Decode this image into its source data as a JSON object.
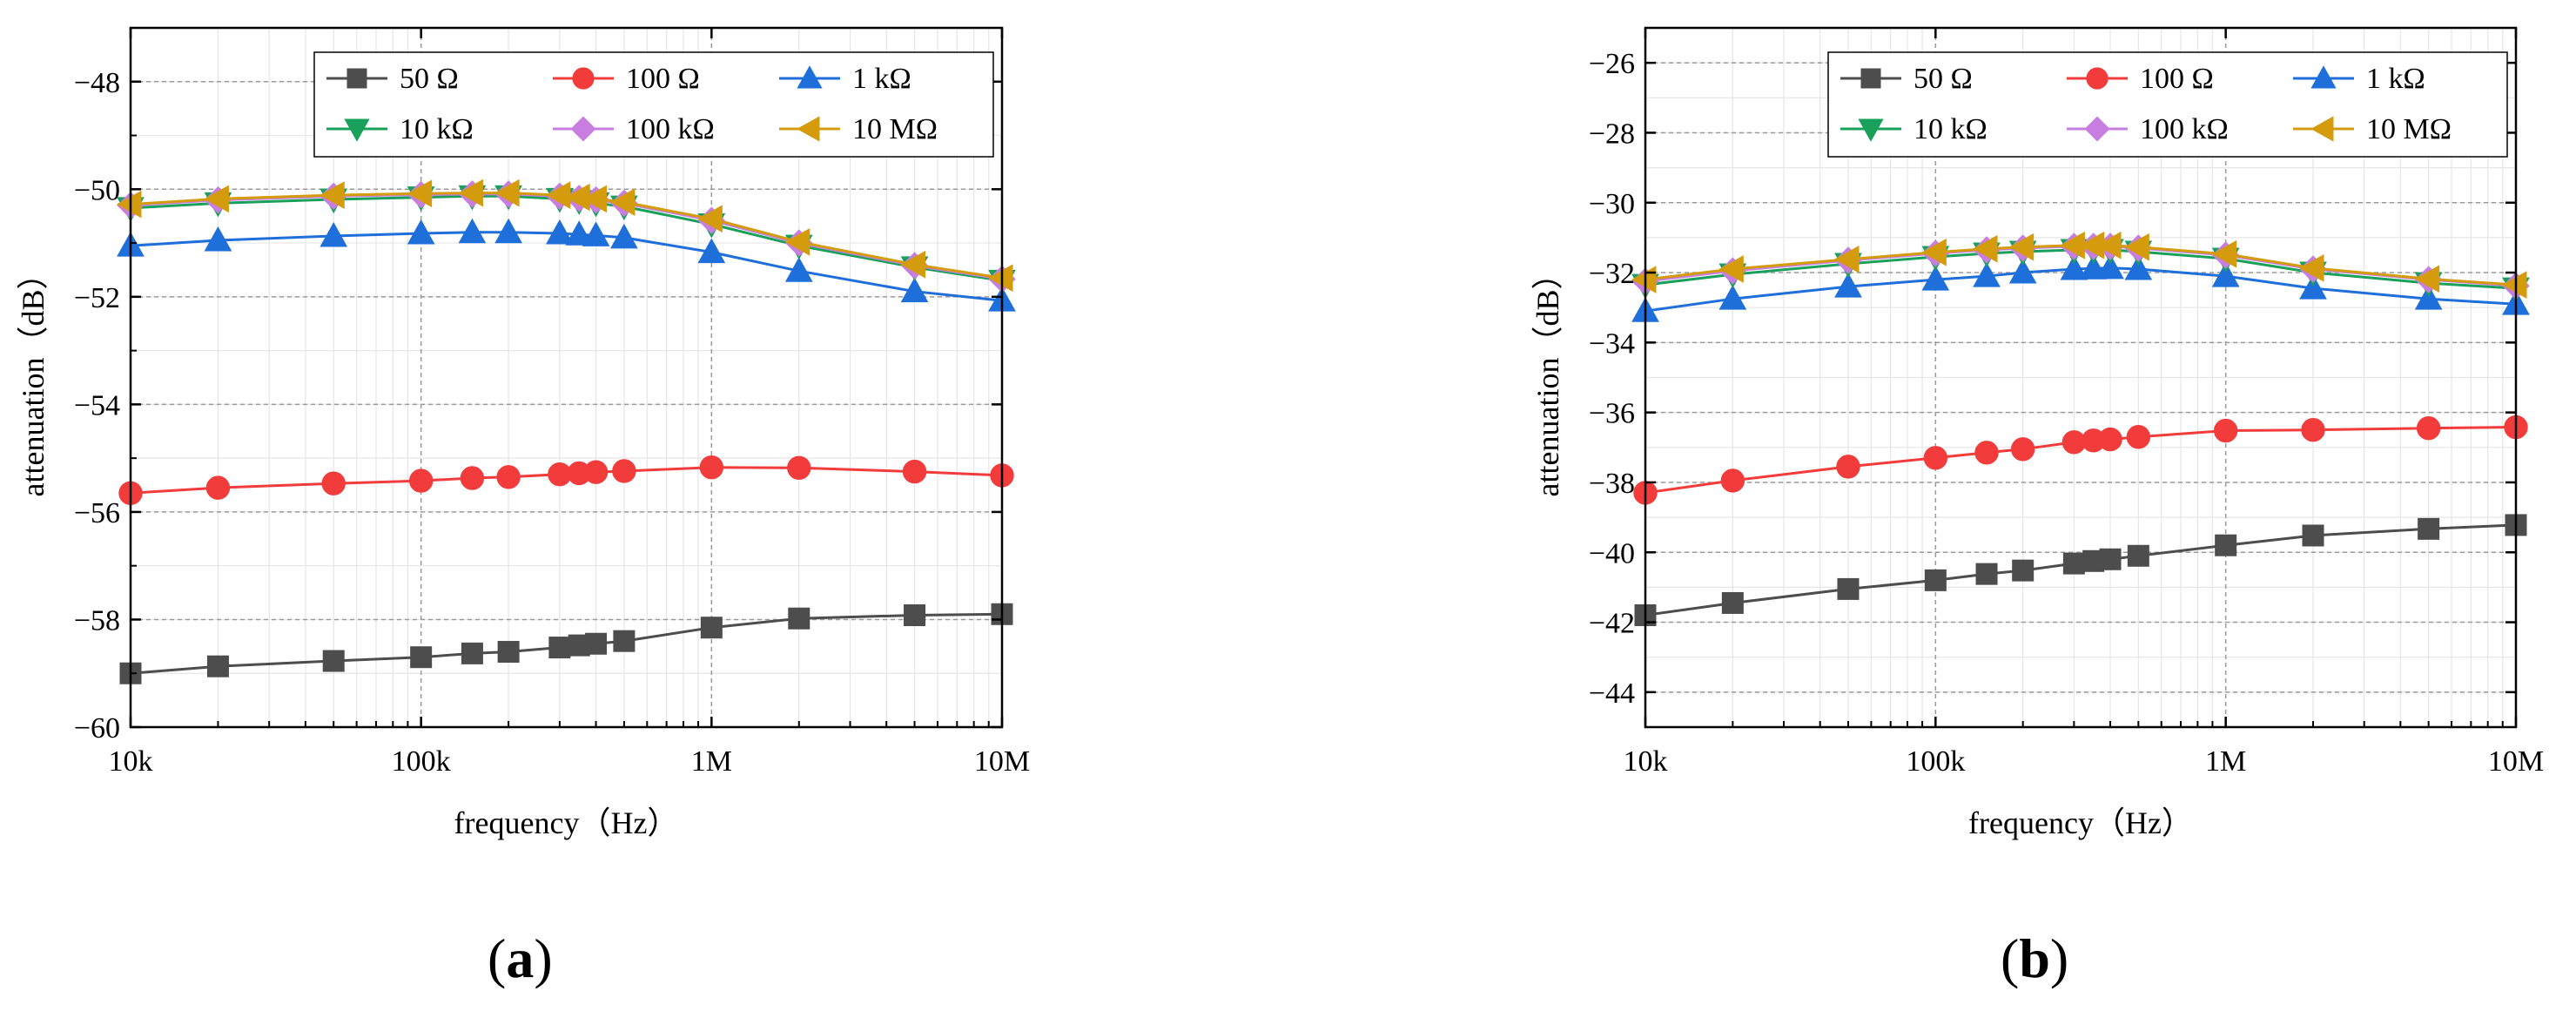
{
  "chart_data": [
    {
      "type": "line",
      "panel_label": {
        "open": "(",
        "letter": "a",
        "close": ")"
      },
      "xlabel": "frequency（Hz）",
      "ylabel": "attenuation（dB）",
      "xscale": "log",
      "xlim": [
        10000,
        10000000
      ],
      "ylim": [
        -60,
        -47
      ],
      "x_ticks": [
        10000,
        100000,
        1000000,
        10000000
      ],
      "x_tick_labels": [
        "10k",
        "100k",
        "1M",
        "10M"
      ],
      "y_ticks": [
        -60,
        -58,
        -56,
        -54,
        -52,
        -50,
        -48
      ],
      "y_tick_labels": [
        "−60",
        "−58",
        "−56",
        "−54",
        "−52",
        "−50",
        "−48"
      ],
      "grid": true,
      "legend_position": "top-right",
      "x": [
        10000,
        20000,
        50000,
        100000,
        150000,
        200000,
        300000,
        350000,
        400000,
        500000,
        1000000,
        2000000,
        5000000,
        10000000
      ],
      "series": [
        {
          "name": "50 Ω",
          "color": "#4d4d4d",
          "marker": "square",
          "values": [
            -59.0,
            -58.87,
            -58.77,
            -58.7,
            -58.63,
            -58.6,
            -58.52,
            -58.48,
            -58.45,
            -58.4,
            -58.15,
            -57.98,
            -57.92,
            -57.9
          ]
        },
        {
          "name": "100 Ω",
          "color": "#f23c3c",
          "marker": "circle",
          "values": [
            -55.65,
            -55.55,
            -55.47,
            -55.42,
            -55.37,
            -55.35,
            -55.3,
            -55.28,
            -55.26,
            -55.24,
            -55.17,
            -55.18,
            -55.25,
            -55.32
          ]
        },
        {
          "name": "1 kΩ",
          "color": "#1f6fdb",
          "marker": "triangle-up",
          "values": [
            -51.05,
            -50.95,
            -50.87,
            -50.82,
            -50.8,
            -50.8,
            -50.82,
            -50.84,
            -50.86,
            -50.9,
            -51.17,
            -51.52,
            -51.9,
            -52.07
          ]
        },
        {
          "name": "10 kΩ",
          "color": "#19a05a",
          "marker": "triangle-down",
          "values": [
            -50.35,
            -50.26,
            -50.19,
            -50.15,
            -50.13,
            -50.13,
            -50.18,
            -50.22,
            -50.26,
            -50.32,
            -50.65,
            -51.05,
            -51.45,
            -51.7
          ]
        },
        {
          "name": "100 kΩ",
          "color": "#c77ee0",
          "marker": "diamond",
          "values": [
            -50.3,
            -50.2,
            -50.13,
            -50.1,
            -50.09,
            -50.09,
            -50.13,
            -50.17,
            -50.2,
            -50.26,
            -50.58,
            -51.0,
            -51.42,
            -51.67
          ]
        },
        {
          "name": "10 MΩ",
          "color": "#d49b0d",
          "marker": "triangle-left",
          "values": [
            -50.28,
            -50.18,
            -50.11,
            -50.08,
            -50.07,
            -50.07,
            -50.11,
            -50.15,
            -50.18,
            -50.24,
            -50.55,
            -50.98,
            -51.4,
            -51.65
          ]
        }
      ]
    },
    {
      "type": "line",
      "panel_label": {
        "open": "(",
        "letter": "b",
        "close": ")"
      },
      "xlabel": "frequency（Hz）",
      "ylabel": "attenuation（dB）",
      "xscale": "log",
      "xlim": [
        10000,
        10000000
      ],
      "ylim": [
        -45,
        -25
      ],
      "x_ticks": [
        10000,
        100000,
        1000000,
        10000000
      ],
      "x_tick_labels": [
        "10k",
        "100k",
        "1M",
        "10M"
      ],
      "y_ticks": [
        -44,
        -42,
        -40,
        -38,
        -36,
        -34,
        -32,
        -30,
        -28,
        -26
      ],
      "y_tick_labels": [
        "−44",
        "−42",
        "−40",
        "−38",
        "−36",
        "−34",
        "−32",
        "−30",
        "−28",
        "−26"
      ],
      "grid": true,
      "legend_position": "top-right",
      "x": [
        10000,
        20000,
        50000,
        100000,
        150000,
        200000,
        300000,
        350000,
        400000,
        500000,
        1000000,
        2000000,
        5000000,
        10000000
      ],
      "series": [
        {
          "name": "50 Ω",
          "color": "#4d4d4d",
          "marker": "square",
          "values": [
            -41.8,
            -41.45,
            -41.05,
            -40.8,
            -40.62,
            -40.52,
            -40.32,
            -40.25,
            -40.2,
            -40.1,
            -39.8,
            -39.52,
            -39.33,
            -39.22
          ]
        },
        {
          "name": "100 Ω",
          "color": "#f23c3c",
          "marker": "circle",
          "values": [
            -38.3,
            -37.95,
            -37.55,
            -37.3,
            -37.15,
            -37.05,
            -36.85,
            -36.8,
            -36.77,
            -36.7,
            -36.52,
            -36.5,
            -36.45,
            -36.42
          ]
        },
        {
          "name": "1 kΩ",
          "color": "#1f6fdb",
          "marker": "triangle-up",
          "values": [
            -33.1,
            -32.75,
            -32.4,
            -32.2,
            -32.1,
            -32.0,
            -31.9,
            -31.88,
            -31.87,
            -31.9,
            -32.1,
            -32.45,
            -32.75,
            -32.9
          ]
        },
        {
          "name": "10 kΩ",
          "color": "#19a05a",
          "marker": "triangle-down",
          "values": [
            -32.35,
            -32.05,
            -31.75,
            -31.55,
            -31.45,
            -31.4,
            -31.35,
            -31.35,
            -31.35,
            -31.4,
            -31.6,
            -32.0,
            -32.3,
            -32.45
          ]
        },
        {
          "name": "100 kΩ",
          "color": "#c77ee0",
          "marker": "diamond",
          "values": [
            -32.25,
            -31.95,
            -31.65,
            -31.45,
            -31.35,
            -31.3,
            -31.25,
            -31.25,
            -31.25,
            -31.3,
            -31.5,
            -31.9,
            -32.2,
            -32.38
          ]
        },
        {
          "name": "10 MΩ",
          "color": "#d49b0d",
          "marker": "triangle-left",
          "values": [
            -32.2,
            -31.9,
            -31.62,
            -31.42,
            -31.32,
            -31.27,
            -31.22,
            -31.22,
            -31.22,
            -31.27,
            -31.47,
            -31.87,
            -32.18,
            -32.35
          ]
        }
      ]
    }
  ]
}
